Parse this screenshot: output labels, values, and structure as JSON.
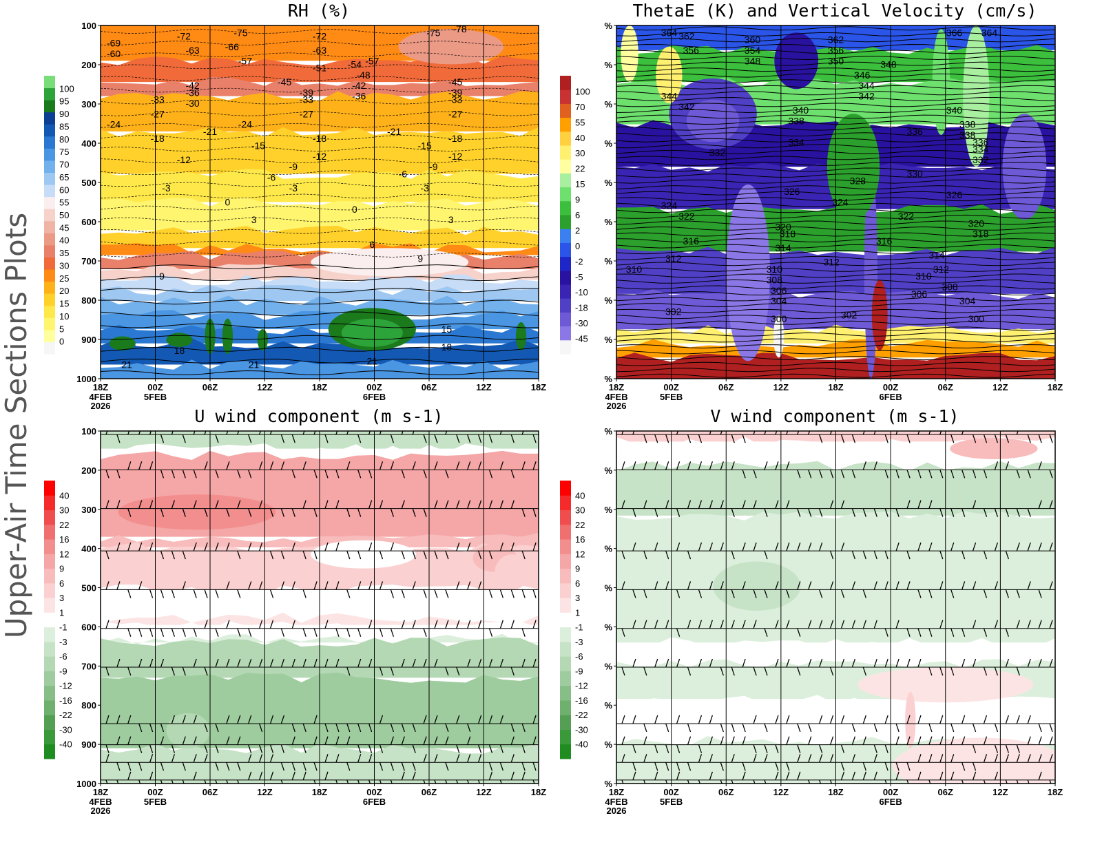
{
  "side_title": "Upper-Air Time Sections Plots",
  "chart_data": [
    {
      "type": "heatmap",
      "title": "RH (%)",
      "x_ticks": [
        "18Z",
        "00Z",
        "06Z",
        "12Z",
        "18Z",
        "00Z",
        "06Z",
        "12Z",
        "18Z"
      ],
      "x_dates": [
        {
          "tick": 0,
          "lines": [
            "4FEB",
            "2026"
          ]
        },
        {
          "tick": 1,
          "lines": [
            "5FEB"
          ]
        },
        {
          "tick": 5,
          "lines": [
            "6FEB"
          ]
        }
      ],
      "y_ticks": [
        "100",
        "200",
        "300",
        "400",
        "500",
        "600",
        "700",
        "800",
        "900",
        "1000"
      ],
      "colorbar": {
        "labels": [
          "0",
          "5",
          "10",
          "15",
          "20",
          "25",
          "30",
          "35",
          "40",
          "45",
          "50",
          "55",
          "60",
          "65",
          "70",
          "75",
          "80",
          "85",
          "90",
          "95",
          "100"
        ],
        "colors": [
          "#f6f6f6",
          "#ffff9e",
          "#fff56e",
          "#ffe84a",
          "#ffd12a",
          "#ffb11a",
          "#ff8a14",
          "#f06a3a",
          "#e8806a",
          "#eb9a86",
          "#f0b4a6",
          "#f6d2ca",
          "#fbeeee",
          "#c7dcf6",
          "#9ec8f2",
          "#73b1ec",
          "#4a96e2",
          "#2a78d2",
          "#1359b4",
          "#0d3f95",
          "#1a7a1c",
          "#2da43a",
          "#79dd7a"
        ],
        "range": [
          0,
          100
        ]
      },
      "overlay": "temperature contours (C)",
      "contour_labels": [
        "-69",
        "-60",
        "-72",
        "-63",
        "-75",
        "-66",
        "-57",
        "-72",
        "-63",
        "-51",
        "-54",
        "-57",
        "-48",
        "-75",
        "-78",
        "-42",
        "-36",
        "-30",
        "-45",
        "-39",
        "-33",
        "-27",
        "-42",
        "-36",
        "-45",
        "-39",
        "-33",
        "-27",
        "-33",
        "-27",
        "-24",
        "-18",
        "-12",
        "-21",
        "-24",
        "-15",
        "-18",
        "-12",
        "-9",
        "-6",
        "-3",
        "-21",
        "-15",
        "-6",
        "-3",
        "-9",
        "-18",
        "-12",
        "-3",
        "0",
        "3",
        "0",
        "3",
        "6",
        "9",
        "9",
        "15",
        "18",
        "21",
        "21",
        "18",
        "21"
      ]
    },
    {
      "type": "heatmap",
      "title": "ThetaE (K) and Vertical Velocity (cm/s)",
      "x_ticks": [
        "18Z",
        "00Z",
        "06Z",
        "12Z",
        "18Z",
        "00Z",
        "06Z",
        "12Z",
        "18Z"
      ],
      "x_dates": [
        {
          "tick": 0,
          "lines": [
            "4FEB",
            "2026"
          ]
        },
        {
          "tick": 1,
          "lines": [
            "5FEB"
          ]
        },
        {
          "tick": 5,
          "lines": [
            "6FEB"
          ]
        }
      ],
      "y_ticks": [
        "%",
        "%",
        "%",
        "%",
        "%",
        "%",
        "%",
        "%",
        "%",
        "%"
      ],
      "colorbar": {
        "labels": [
          "-45",
          "-30",
          "-18",
          "-10",
          "-5",
          "-2",
          "0",
          "2",
          "6",
          "9",
          "15",
          "22",
          "30",
          "40",
          "55",
          "70",
          "100"
        ],
        "colors": [
          "#f6f6f6",
          "#8b78e6",
          "#6e5ad6",
          "#5040c6",
          "#3a24b4",
          "#2a12a0",
          "#1f26c8",
          "#2a55e8",
          "#3a80f0",
          "#2ca02c",
          "#3cbf3c",
          "#6ee06e",
          "#a8f0a0",
          "#ffffa0",
          "#fff070",
          "#ffd040",
          "#ffa000",
          "#e06020",
          "#c83232",
          "#b02020"
        ],
        "range": [
          -45,
          100
        ]
      },
      "overlay": "equivalent potential temperature contours (K)",
      "contour_labels": [
        "364",
        "362",
        "356",
        "360",
        "354",
        "348",
        "362",
        "356",
        "350",
        "366",
        "364",
        "346",
        "348",
        "344",
        "342",
        "344",
        "342",
        "340",
        "338",
        "340",
        "338",
        "336",
        "338",
        "336",
        "334",
        "332",
        "334",
        "332",
        "330",
        "328",
        "326",
        "326",
        "324",
        "324",
        "322",
        "322",
        "320",
        "320",
        "318",
        "316",
        "316",
        "318",
        "314",
        "314",
        "312",
        "312",
        "310",
        "310",
        "312",
        "310",
        "308",
        "308",
        "306",
        "306",
        "304",
        "304",
        "302",
        "302",
        "300",
        "300"
      ]
    },
    {
      "type": "heatmap",
      "title": "U wind component (m s-1)",
      "x_ticks": [
        "18Z",
        "00Z",
        "06Z",
        "12Z",
        "18Z",
        "00Z",
        "06Z",
        "12Z",
        "18Z"
      ],
      "x_dates": [
        {
          "tick": 0,
          "lines": [
            "4FEB",
            "2026"
          ]
        },
        {
          "tick": 1,
          "lines": [
            "5FEB"
          ]
        },
        {
          "tick": 5,
          "lines": [
            "6FEB"
          ]
        }
      ],
      "y_ticks": [
        "100",
        "200",
        "300",
        "400",
        "500",
        "600",
        "700",
        "800",
        "900",
        "1000"
      ],
      "colorbar": {
        "labels": [
          "-40",
          "-30",
          "-22",
          "-16",
          "-12",
          "-9",
          "-6",
          "-3",
          "-1",
          "1",
          "3",
          "6",
          "9",
          "12",
          "16",
          "22",
          "30",
          "40"
        ],
        "colors": [
          "#1e8c1e",
          "#3a9a3a",
          "#559f55",
          "#6fb06f",
          "#87be87",
          "#9ecc9e",
          "#b3d8b3",
          "#c7e3c7",
          "#dcefdc",
          "#ffffff",
          "#fde4e4",
          "#fbd0d0",
          "#f8bcbc",
          "#f5a6a6",
          "#f28e8e",
          "#f07070",
          "#f04e4e",
          "#f52a2a",
          "#ff0000"
        ],
        "range": [
          -40,
          40
        ]
      },
      "overlay": "wind barbs"
    },
    {
      "type": "heatmap",
      "title": "V wind component (m s-1)",
      "x_ticks": [
        "18Z",
        "00Z",
        "06Z",
        "12Z",
        "18Z",
        "00Z",
        "06Z",
        "12Z",
        "18Z"
      ],
      "x_dates": [
        {
          "tick": 0,
          "lines": [
            "4FEB",
            "2026"
          ]
        },
        {
          "tick": 1,
          "lines": [
            "5FEB"
          ]
        },
        {
          "tick": 5,
          "lines": [
            "6FEB"
          ]
        }
      ],
      "y_ticks": [
        "%",
        "%",
        "%",
        "%",
        "%",
        "%",
        "%",
        "%",
        "%",
        "%"
      ],
      "colorbar": {
        "labels": [
          "-40",
          "-30",
          "-22",
          "-16",
          "-12",
          "-9",
          "-6",
          "-3",
          "-1",
          "1",
          "3",
          "6",
          "9",
          "12",
          "16",
          "22",
          "30",
          "40"
        ],
        "colors": [
          "#1e8c1e",
          "#3a9a3a",
          "#559f55",
          "#6fb06f",
          "#87be87",
          "#9ecc9e",
          "#b3d8b3",
          "#c7e3c7",
          "#dcefdc",
          "#ffffff",
          "#fde4e4",
          "#fbd0d0",
          "#f8bcbc",
          "#f5a6a6",
          "#f28e8e",
          "#f07070",
          "#f04e4e",
          "#f52a2a",
          "#ff0000"
        ],
        "range": [
          -40,
          40
        ]
      },
      "overlay": "wind barbs"
    }
  ]
}
